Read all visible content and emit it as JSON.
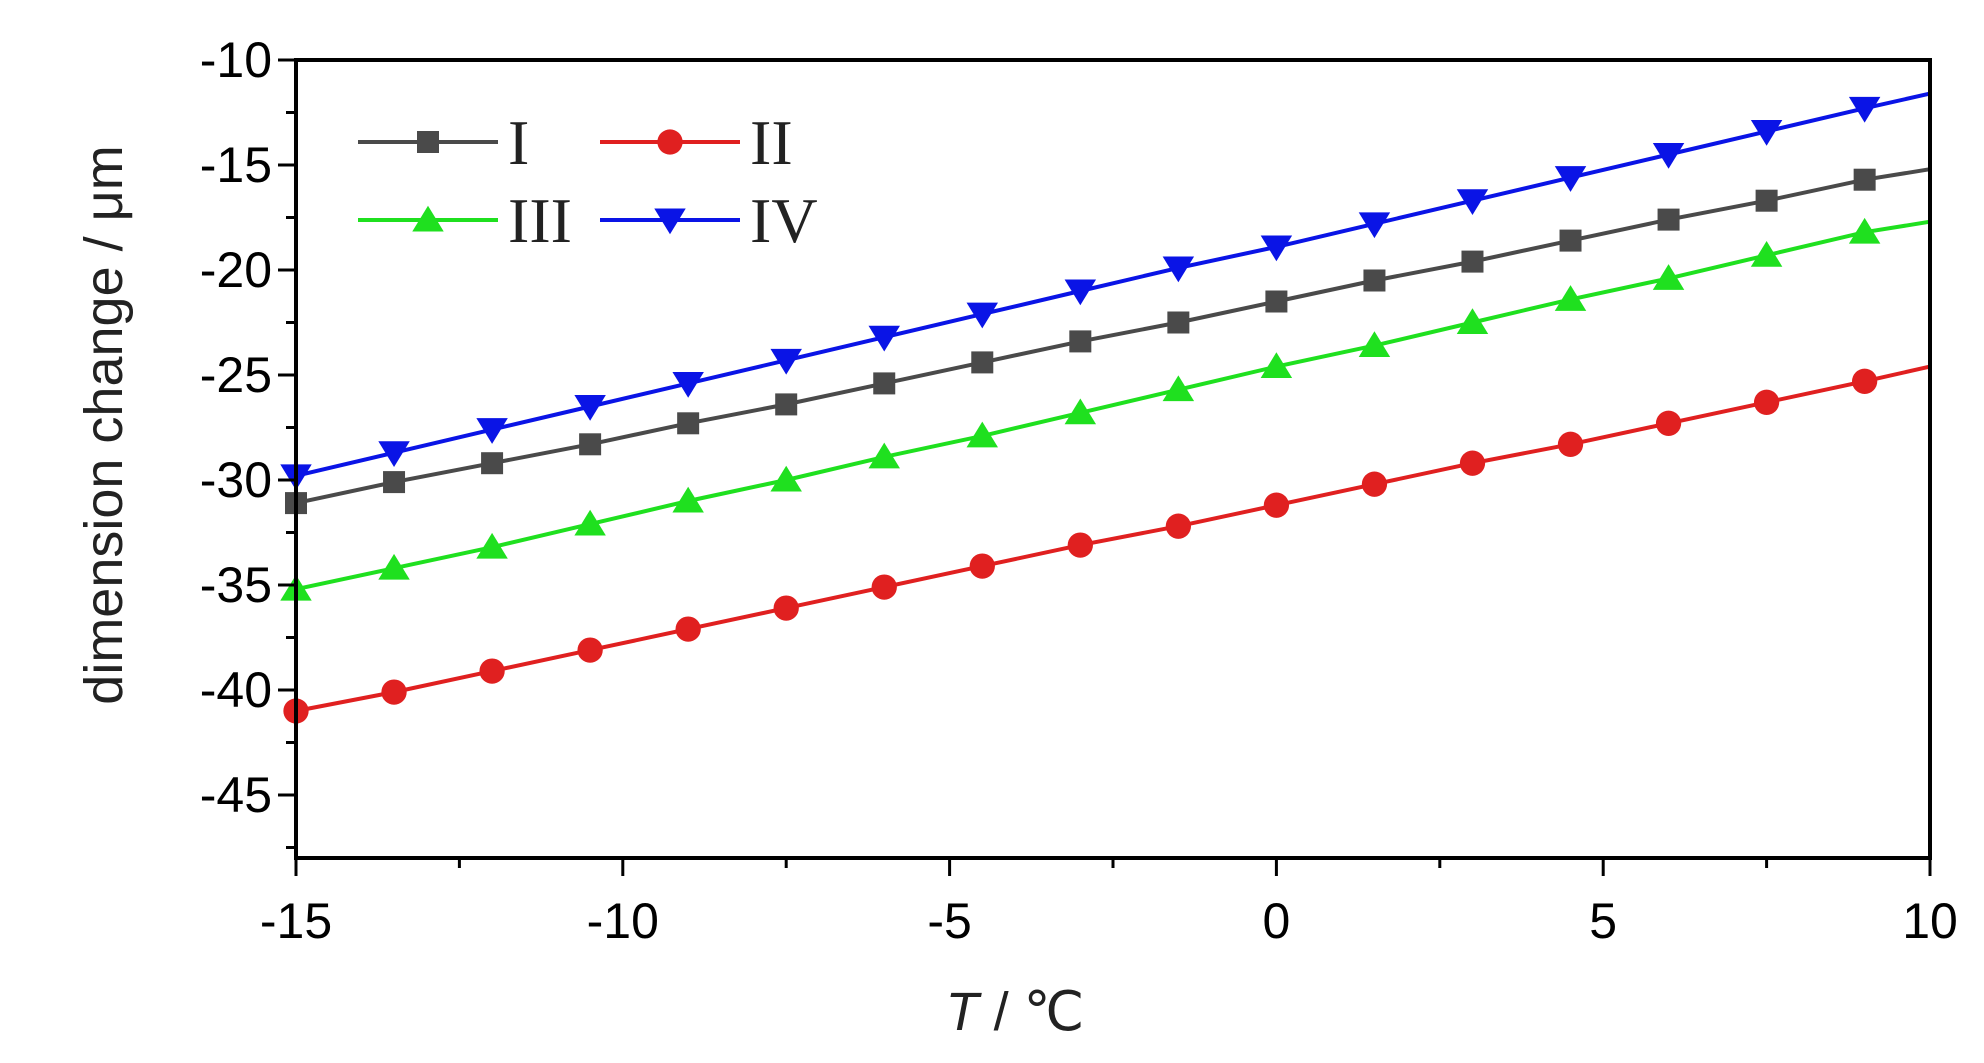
{
  "chart_data": {
    "type": "line",
    "xlabel_var": "T",
    "xlabel_unit": " / ℃",
    "ylabel": "dimension change / μm",
    "xlim": [
      -15,
      10
    ],
    "ylim": [
      -48,
      -10
    ],
    "xticks": [
      -15,
      -10,
      -5,
      0,
      5,
      10
    ],
    "yticks": [
      -10,
      -15,
      -20,
      -25,
      -30,
      -35,
      -40,
      -45
    ],
    "grid": false,
    "legend_position": "top-left",
    "series": [
      {
        "name": "I",
        "color": "#4a4a4a",
        "marker": "square",
        "x": [
          -15,
          -13.5,
          -12,
          -10.5,
          -9,
          -7.5,
          -6,
          -4.5,
          -3,
          -1.5,
          0,
          1.5,
          3,
          4.5,
          6,
          7.5,
          9,
          10
        ],
        "y": [
          -31.1,
          -30.1,
          -29.2,
          -28.3,
          -27.3,
          -26.4,
          -25.4,
          -24.4,
          -23.4,
          -22.5,
          -21.5,
          -20.5,
          -19.6,
          -18.6,
          -17.6,
          -16.7,
          -15.7,
          -15.2
        ]
      },
      {
        "name": "II",
        "color": "#e02020",
        "marker": "circle",
        "x": [
          -15,
          -13.5,
          -12,
          -10.5,
          -9,
          -7.5,
          -6,
          -4.5,
          -3,
          -1.5,
          0,
          1.5,
          3,
          4.5,
          6,
          7.5,
          9,
          10
        ],
        "y": [
          -41.0,
          -40.1,
          -39.1,
          -38.1,
          -37.1,
          -36.1,
          -35.1,
          -34.1,
          -33.1,
          -32.2,
          -31.2,
          -30.2,
          -29.2,
          -28.3,
          -27.3,
          -26.3,
          -25.3,
          -24.6
        ]
      },
      {
        "name": "III",
        "color": "#1fe01f",
        "marker": "triangle-up",
        "x": [
          -15,
          -13.5,
          -12,
          -10.5,
          -9,
          -7.5,
          -6,
          -4.5,
          -3,
          -1.5,
          0,
          1.5,
          3,
          4.5,
          6,
          7.5,
          9,
          10
        ],
        "y": [
          -35.2,
          -34.2,
          -33.2,
          -32.1,
          -31.0,
          -30.0,
          -28.9,
          -27.9,
          -26.8,
          -25.7,
          -24.6,
          -23.6,
          -22.5,
          -21.4,
          -20.4,
          -19.3,
          -18.2,
          -17.7
        ]
      },
      {
        "name": "IV",
        "color": "#0a14e6",
        "marker": "triangle-down",
        "x": [
          -15,
          -13.5,
          -12,
          -10.5,
          -9,
          -7.5,
          -6,
          -4.5,
          -3,
          -1.5,
          0,
          1.5,
          3,
          4.5,
          6,
          7.5,
          9,
          10
        ],
        "y": [
          -29.8,
          -28.7,
          -27.6,
          -26.5,
          -25.4,
          -24.3,
          -23.2,
          -22.1,
          -21.0,
          -19.9,
          -18.9,
          -17.8,
          -16.7,
          -15.6,
          -14.5,
          -13.4,
          -12.3,
          -11.6
        ]
      }
    ]
  }
}
